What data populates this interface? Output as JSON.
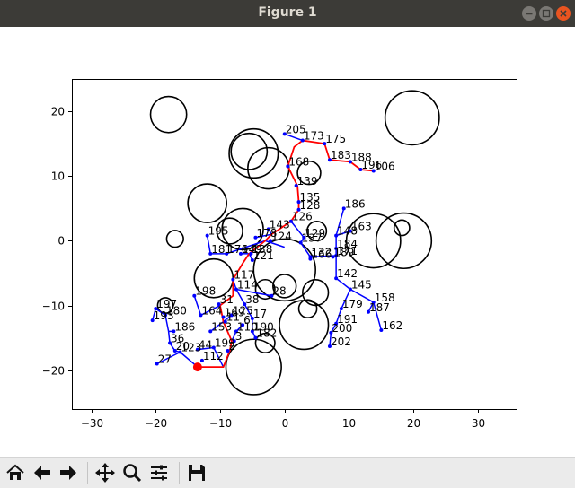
{
  "window": {
    "title": "Figure 1"
  },
  "toolbar": {
    "buttons": [
      {
        "name": "home-button",
        "icon": "home-icon",
        "label": "Home"
      },
      {
        "name": "back-button",
        "icon": "back-arrow-icon",
        "label": "Back"
      },
      {
        "name": "forward-button",
        "icon": "forward-arrow-icon",
        "label": "Forward"
      },
      {
        "name": "pan-button",
        "icon": "move-icon",
        "label": "Pan"
      },
      {
        "name": "zoom-button",
        "icon": "magnifier-icon",
        "label": "Zoom"
      },
      {
        "name": "configure-subplots-button",
        "icon": "sliders-icon",
        "label": "Subplots"
      },
      {
        "name": "save-button",
        "icon": "floppy-disk-icon",
        "label": "Save"
      }
    ]
  },
  "chart_data": {
    "type": "scatter",
    "title": "",
    "xlabel": "",
    "ylabel": "",
    "xlim": [
      -33,
      36
    ],
    "ylim": [
      -26,
      25
    ],
    "x_ticks": [
      -30,
      -20,
      -10,
      0,
      10,
      20,
      30
    ],
    "y_ticks": [
      -20,
      -10,
      0,
      10,
      20
    ],
    "grid": false,
    "colors": {
      "tree": "#0000ff",
      "path": "#ff0000",
      "goal": "#ff0000",
      "obstacle": "#000000"
    },
    "obstacles": [
      {
        "x": -18.0,
        "y": 19.5,
        "r": 2.8
      },
      {
        "x": 19.8,
        "y": 19.0,
        "r": 4.2
      },
      {
        "x": -4.8,
        "y": 13.5,
        "r": 3.8
      },
      {
        "x": -5.5,
        "y": 13.8,
        "r": 2.8
      },
      {
        "x": -2.5,
        "y": 11.2,
        "r": 3.2
      },
      {
        "x": 3.8,
        "y": 10.5,
        "r": 1.8
      },
      {
        "x": -12.0,
        "y": 5.8,
        "r": 3.0
      },
      {
        "x": -6.5,
        "y": 1.8,
        "r": 3.2
      },
      {
        "x": -8.5,
        "y": 1.5,
        "r": 2.0
      },
      {
        "x": -17.0,
        "y": 0.3,
        "r": 1.3
      },
      {
        "x": 5.0,
        "y": 1.5,
        "r": 1.5
      },
      {
        "x": 13.8,
        "y": 0.0,
        "r": 4.2
      },
      {
        "x": 18.5,
        "y": 0.0,
        "r": 4.3
      },
      {
        "x": 18.2,
        "y": 2.0,
        "r": 1.2
      },
      {
        "x": -11.0,
        "y": -5.8,
        "r": 3.0
      },
      {
        "x": 0.0,
        "y": -4.5,
        "r": 4.8
      },
      {
        "x": 0.0,
        "y": -7.0,
        "r": 1.8
      },
      {
        "x": -3.0,
        "y": -7.5,
        "r": 1.5
      },
      {
        "x": 4.8,
        "y": -8.0,
        "r": 2.0
      },
      {
        "x": 3.6,
        "y": -10.5,
        "r": 1.4
      },
      {
        "x": 3.0,
        "y": -13.0,
        "r": 3.8
      },
      {
        "x": -18.5,
        "y": -10.0,
        "r": 1.2
      },
      {
        "x": -3.0,
        "y": -15.8,
        "r": 1.5
      },
      {
        "x": -4.8,
        "y": -19.5,
        "r": 4.3
      }
    ],
    "labeled_nodes": [
      {
        "id": "205",
        "x": 0.0,
        "y": 16.5
      },
      {
        "id": "173",
        "x": 2.8,
        "y": 15.5
      },
      {
        "id": "175",
        "x": 6.2,
        "y": 15.0
      },
      {
        "id": "183",
        "x": 7.0,
        "y": 12.5
      },
      {
        "id": "188",
        "x": 10.2,
        "y": 12.2
      },
      {
        "id": "196",
        "x": 11.8,
        "y": 11.0
      },
      {
        "id": "106",
        "x": 13.8,
        "y": 10.8
      },
      {
        "id": "168",
        "x": 0.5,
        "y": 11.5
      },
      {
        "id": "139",
        "x": 1.8,
        "y": 8.5
      },
      {
        "id": "135",
        "x": 2.2,
        "y": 6.0
      },
      {
        "id": "128",
        "x": 2.2,
        "y": 4.8
      },
      {
        "id": "126",
        "x": 1.0,
        "y": 3.0
      },
      {
        "id": "186",
        "x": 9.2,
        "y": 5.0
      },
      {
        "id": "143",
        "x": -2.5,
        "y": 1.8
      },
      {
        "id": "163",
        "x": 10.2,
        "y": 1.5
      },
      {
        "id": "195",
        "x": -12.0,
        "y": 0.8
      },
      {
        "id": "178",
        "x": -4.5,
        "y": 0.5
      },
      {
        "id": "124",
        "x": -2.2,
        "y": 0.0
      },
      {
        "id": "148",
        "x": 8.0,
        "y": 0.8
      },
      {
        "id": "129",
        "x": 3.0,
        "y": 0.5
      },
      {
        "id": "137",
        "x": 2.5,
        "y": -0.3
      },
      {
        "id": "184",
        "x": 8.0,
        "y": -1.2
      },
      {
        "id": "181",
        "x": -11.5,
        "y": -2.0
      },
      {
        "id": "176",
        "x": -9.0,
        "y": -2.0
      },
      {
        "id": "149",
        "x": -6.8,
        "y": -2.0
      },
      {
        "id": "138",
        "x": -5.2,
        "y": -2.0
      },
      {
        "id": "121",
        "x": -5.0,
        "y": -3.0
      },
      {
        "id": "171",
        "x": 8.0,
        "y": -2.3
      },
      {
        "id": "189",
        "x": 7.5,
        "y": -2.5
      },
      {
        "id": "166",
        "x": 4.0,
        "y": -2.8
      },
      {
        "id": "132",
        "x": 4.0,
        "y": -2.5
      },
      {
        "id": "142",
        "x": 8.0,
        "y": -5.8
      },
      {
        "id": "117",
        "x": -8.0,
        "y": -6.0
      },
      {
        "id": "145",
        "x": 10.2,
        "y": -7.5
      },
      {
        "id": "114",
        "x": -7.5,
        "y": -7.5
      },
      {
        "id": "198",
        "x": -14.0,
        "y": -8.5
      },
      {
        "id": "28",
        "x": -2.0,
        "y": -8.5
      },
      {
        "id": "158",
        "x": 13.8,
        "y": -9.5
      },
      {
        "id": "197",
        "x": -20.0,
        "y": -10.5
      },
      {
        "id": "31",
        "x": -10.2,
        "y": -9.8
      },
      {
        "id": "38",
        "x": -6.2,
        "y": -9.8
      },
      {
        "id": "179",
        "x": 8.8,
        "y": -10.5
      },
      {
        "id": "187",
        "x": 13.0,
        "y": -11.0
      },
      {
        "id": "180",
        "x": -18.5,
        "y": -11.5
      },
      {
        "id": "164",
        "x": -13.0,
        "y": -11.5
      },
      {
        "id": "125",
        "x": -8.2,
        "y": -11.5
      },
      {
        "id": "193",
        "x": -20.5,
        "y": -12.3
      },
      {
        "id": "169",
        "x": -9.5,
        "y": -11.8
      },
      {
        "id": "17",
        "x": -5.0,
        "y": -12.0
      },
      {
        "id": "191",
        "x": 8.0,
        "y": -12.8
      },
      {
        "id": "186b",
        "x": -17.2,
        "y": -14.0
      },
      {
        "id": "11",
        "x": -9.2,
        "y": -12.5
      },
      {
        "id": "6",
        "x": -6.5,
        "y": -13.0
      },
      {
        "id": "162",
        "x": 15.0,
        "y": -13.8
      },
      {
        "id": "153",
        "x": -11.5,
        "y": -14.0
      },
      {
        "id": "110",
        "x": -7.5,
        "y": -14.0
      },
      {
        "id": "190",
        "x": -5.0,
        "y": -14.0
      },
      {
        "id": "200",
        "x": 7.2,
        "y": -14.2
      },
      {
        "id": "182",
        "x": -4.5,
        "y": -15.0
      },
      {
        "id": "36",
        "x": -17.8,
        "y": -15.8
      },
      {
        "id": "202",
        "x": 7.0,
        "y": -16.3
      },
      {
        "id": "3",
        "x": -7.8,
        "y": -15.5
      },
      {
        "id": "199",
        "x": -11.0,
        "y": -16.5
      },
      {
        "id": "44",
        "x": -13.5,
        "y": -16.8
      },
      {
        "id": "20",
        "x": -17.0,
        "y": -17.0
      },
      {
        "id": "123",
        "x": -16.2,
        "y": -17.2
      },
      {
        "id": "2",
        "x": -8.8,
        "y": -17.0
      },
      {
        "id": "27",
        "x": -19.8,
        "y": -19.0
      },
      {
        "id": "112",
        "x": -12.8,
        "y": -18.5
      }
    ],
    "labels": [
      "205",
      "173",
      "175",
      "183",
      "188",
      "196",
      "106",
      "168",
      "139",
      "135",
      "128",
      "126",
      "186",
      "143",
      "163",
      "195",
      "178",
      "124",
      "148",
      "129",
      "137",
      "184",
      "181",
      "176",
      "149",
      "138",
      "121",
      "171",
      "189",
      "166",
      "132",
      "142",
      "117",
      "145",
      "114",
      "198",
      "28",
      "158",
      "197",
      "31",
      "38",
      "179",
      "187",
      "180",
      "164",
      "125",
      "193",
      "169",
      "17",
      "191",
      "186",
      "11",
      "6",
      "162",
      "153",
      "110",
      "190",
      "200",
      "182",
      "36",
      "202",
      "3",
      "199",
      "44",
      "20",
      "123",
      "2",
      "27",
      "112"
    ],
    "path": [
      [
        -13.5,
        -19.5
      ],
      [
        -9.5,
        -19.5
      ],
      [
        -8.5,
        -17.0
      ],
      [
        -8.2,
        -15.5
      ],
      [
        -9.5,
        -12.5
      ],
      [
        -10.0,
        -10.0
      ],
      [
        -8.0,
        -8.5
      ],
      [
        -8.0,
        -6.0
      ],
      [
        -6.5,
        -3.5
      ],
      [
        -5.5,
        -2.0
      ],
      [
        -3.0,
        0.0
      ],
      [
        -2.0,
        1.0
      ],
      [
        1.0,
        3.0
      ],
      [
        2.2,
        4.8
      ],
      [
        2.2,
        6.0
      ],
      [
        2.0,
        8.5
      ],
      [
        0.5,
        11.5
      ],
      [
        1.5,
        14.5
      ],
      [
        2.8,
        15.5
      ],
      [
        6.2,
        15.0
      ],
      [
        7.0,
        12.5
      ],
      [
        10.2,
        12.2
      ],
      [
        11.8,
        11.0
      ],
      [
        13.8,
        10.8
      ]
    ],
    "goal": {
      "x": -13.5,
      "y": -19.5
    },
    "tree_edges": [
      [
        [
          0.0,
          16.5
        ],
        [
          2.8,
          15.5
        ]
      ],
      [
        [
          -2.0,
          1.0
        ],
        [
          -2.5,
          1.8
        ]
      ],
      [
        [
          -2.0,
          1.0
        ],
        [
          -4.5,
          0.5
        ]
      ],
      [
        [
          -3.0,
          0.0
        ],
        [
          -9.0,
          -2.0
        ]
      ],
      [
        [
          -9.0,
          -2.0
        ],
        [
          -11.5,
          -2.0
        ]
      ],
      [
        [
          -11.5,
          -2.0
        ],
        [
          -12.0,
          0.8
        ]
      ],
      [
        [
          -5.5,
          -2.0
        ],
        [
          -6.8,
          -2.0
        ]
      ],
      [
        [
          -5.5,
          -2.0
        ],
        [
          -5.0,
          -3.0
        ]
      ],
      [
        [
          1.0,
          3.0
        ],
        [
          3.0,
          0.5
        ]
      ],
      [
        [
          3.0,
          0.5
        ],
        [
          2.5,
          -0.3
        ]
      ],
      [
        [
          2.5,
          -0.3
        ],
        [
          4.0,
          -2.5
        ]
      ],
      [
        [
          4.0,
          -2.5
        ],
        [
          8.0,
          -2.3
        ]
      ],
      [
        [
          8.0,
          -2.3
        ],
        [
          8.0,
          -1.2
        ]
      ],
      [
        [
          8.0,
          -1.2
        ],
        [
          8.0,
          0.8
        ]
      ],
      [
        [
          8.0,
          0.8
        ],
        [
          10.2,
          1.5
        ]
      ],
      [
        [
          8.0,
          0.8
        ],
        [
          9.2,
          5.0
        ]
      ],
      [
        [
          8.0,
          -2.3
        ],
        [
          8.0,
          -5.8
        ]
      ],
      [
        [
          8.0,
          -5.8
        ],
        [
          10.2,
          -7.5
        ]
      ],
      [
        [
          10.2,
          -7.5
        ],
        [
          13.8,
          -9.5
        ]
      ],
      [
        [
          13.8,
          -9.5
        ],
        [
          13.0,
          -11.0
        ]
      ],
      [
        [
          13.8,
          -9.5
        ],
        [
          15.0,
          -13.8
        ]
      ],
      [
        [
          10.2,
          -7.5
        ],
        [
          8.8,
          -10.5
        ]
      ],
      [
        [
          8.8,
          -10.5
        ],
        [
          8.0,
          -12.8
        ]
      ],
      [
        [
          8.0,
          -12.8
        ],
        [
          7.2,
          -14.2
        ]
      ],
      [
        [
          7.2,
          -14.2
        ],
        [
          7.0,
          -16.3
        ]
      ],
      [
        [
          -3.0,
          0.0
        ],
        [
          0.0,
          -1.0
        ]
      ],
      [
        [
          -8.0,
          -6.0
        ],
        [
          -7.5,
          -7.5
        ]
      ],
      [
        [
          -7.5,
          -7.5
        ],
        [
          -2.0,
          -8.5
        ]
      ],
      [
        [
          -7.5,
          -7.5
        ],
        [
          -6.2,
          -9.8
        ]
      ],
      [
        [
          -6.2,
          -9.8
        ],
        [
          -5.0,
          -12.0
        ]
      ],
      [
        [
          -5.0,
          -12.0
        ],
        [
          -5.0,
          -14.0
        ]
      ],
      [
        [
          -5.0,
          -14.0
        ],
        [
          -4.5,
          -15.0
        ]
      ],
      [
        [
          -8.2,
          -15.5
        ],
        [
          -7.5,
          -14.0
        ]
      ],
      [
        [
          -7.5,
          -14.0
        ],
        [
          -6.5,
          -13.0
        ]
      ],
      [
        [
          -9.5,
          -12.5
        ],
        [
          -11.5,
          -14.0
        ]
      ],
      [
        [
          -9.5,
          -12.5
        ],
        [
          -8.2,
          -11.5
        ]
      ],
      [
        [
          -10.0,
          -10.0
        ],
        [
          -13.0,
          -11.5
        ]
      ],
      [
        [
          -13.0,
          -11.5
        ],
        [
          -14.0,
          -8.5
        ]
      ],
      [
        [
          -9.5,
          -19.5
        ],
        [
          -11.0,
          -16.5
        ]
      ],
      [
        [
          -11.0,
          -16.5
        ],
        [
          -13.5,
          -16.8
        ]
      ],
      [
        [
          -13.5,
          -19.5
        ],
        [
          -16.2,
          -17.2
        ]
      ],
      [
        [
          -16.2,
          -17.2
        ],
        [
          -17.0,
          -17.0
        ]
      ],
      [
        [
          -17.0,
          -17.0
        ],
        [
          -17.8,
          -15.8
        ]
      ],
      [
        [
          -17.8,
          -15.8
        ],
        [
          -18.0,
          -14.0
        ]
      ],
      [
        [
          -18.0,
          -14.0
        ],
        [
          -18.5,
          -11.5
        ]
      ],
      [
        [
          -18.5,
          -11.5
        ],
        [
          -20.0,
          -10.5
        ]
      ],
      [
        [
          -20.0,
          -10.5
        ],
        [
          -20.5,
          -12.3
        ]
      ],
      [
        [
          -18.0,
          -14.0
        ],
        [
          -17.2,
          -14.0
        ]
      ],
      [
        [
          -16.2,
          -17.2
        ],
        [
          -19.8,
          -19.0
        ]
      ]
    ]
  }
}
